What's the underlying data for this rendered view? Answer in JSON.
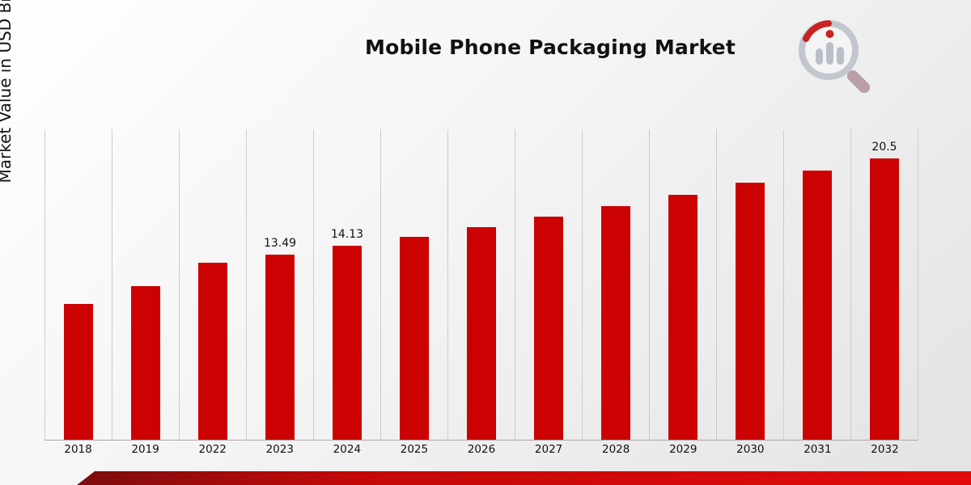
{
  "title": "Mobile Phone Packaging Market",
  "ylabel": "Market Value in USD Billion",
  "colors": {
    "bar": "#cc0202",
    "gridline": "#cccccc",
    "accent_dark": "#7c0d0d",
    "accent_bright": "#e20a0a",
    "logo_gray": "#c2c6ce",
    "logo_red": "#cc2222"
  },
  "chart_data": {
    "type": "bar",
    "title": "Mobile Phone Packaging Market",
    "xlabel": "",
    "ylabel": "Market Value in USD Billion",
    "categories": [
      "2018",
      "2019",
      "2022",
      "2023",
      "2024",
      "2025",
      "2026",
      "2027",
      "2028",
      "2029",
      "2030",
      "2031",
      "2032"
    ],
    "values": [
      9.9,
      11.2,
      12.9,
      13.49,
      14.13,
      14.8,
      15.5,
      16.25,
      17.0,
      17.85,
      18.7,
      19.6,
      20.5
    ],
    "bar_labels": [
      "",
      "",
      "",
      "13.49",
      "14.13",
      "",
      "",
      "",
      "",
      "",
      "",
      "",
      "20.5"
    ],
    "ylim": [
      0,
      22.6
    ],
    "grid": "vertical",
    "legend": "none",
    "bar_color": "#cc0202"
  }
}
